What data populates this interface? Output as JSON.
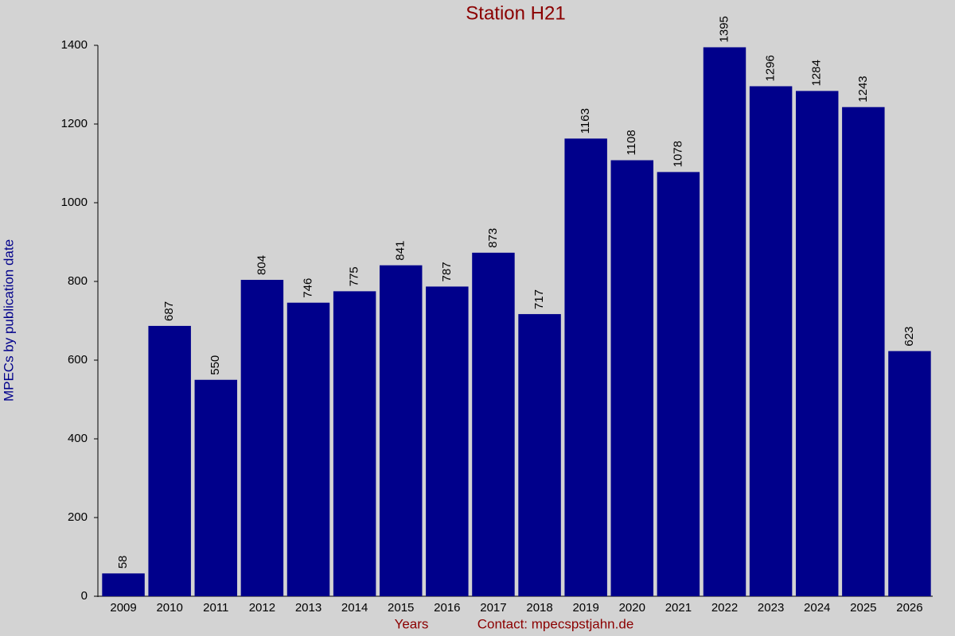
{
  "chart_data": {
    "type": "bar",
    "title": "Station H21",
    "ylabel": "MPECs by publication date",
    "xlabel": "Years",
    "note": "Contact: mpecspstjahn.de",
    "categories": [
      "2009",
      "2010",
      "2011",
      "2012",
      "2013",
      "2014",
      "2015",
      "2016",
      "2017",
      "2018",
      "2019",
      "2020",
      "2021",
      "2022",
      "2023",
      "2024",
      "2025",
      "2026"
    ],
    "values": [
      58,
      687,
      550,
      804,
      746,
      775,
      841,
      787,
      873,
      717,
      1163,
      1108,
      1078,
      1395,
      1296,
      1284,
      1243,
      623
    ],
    "color": "#00008b",
    "ylim": [
      0,
      1400
    ],
    "yticks": [
      0,
      200,
      400,
      600,
      800,
      1000,
      1200,
      1400
    ],
    "grid": false
  }
}
